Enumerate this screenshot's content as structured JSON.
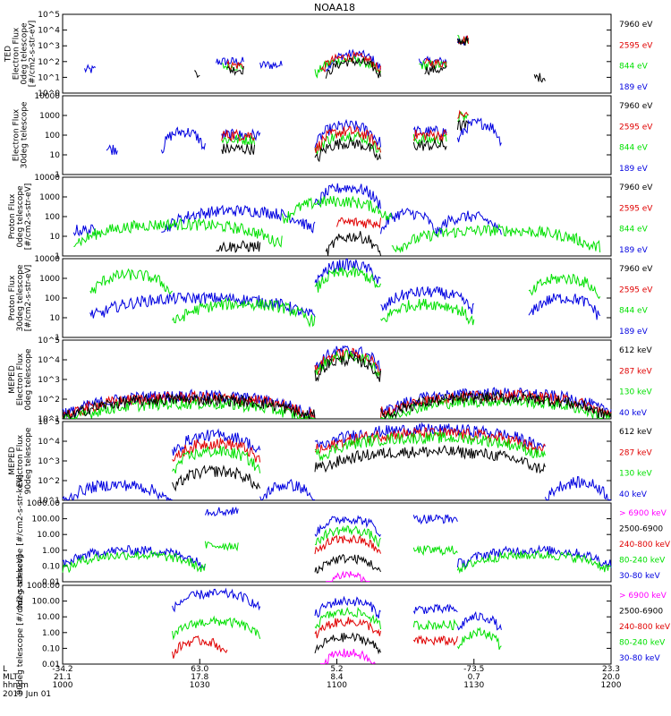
{
  "title": "NOAA18",
  "colors": {
    "black": "#000000",
    "red": "#e00000",
    "green": "#00e000",
    "blue": "#0000e0",
    "magenta": "#ff00ff"
  },
  "chart_data": [
    {
      "type": "line",
      "ylabel": [
        "TED",
        "Electron Flux",
        "0deg telescope",
        "[#/cm2-s-str-eV]"
      ],
      "yticks": [
        "10^0",
        "10^1",
        "10^2",
        "10^3",
        "10^4",
        "10^5"
      ],
      "log": true,
      "ylim": [
        1,
        100000
      ],
      "legend": [
        {
          "name": "7960 eV",
          "color": "black"
        },
        {
          "name": "2595 eV",
          "color": "red"
        },
        {
          "name": "844 eV",
          "color": "green"
        },
        {
          "name": "189 eV",
          "color": "blue"
        }
      ],
      "series": [
        {
          "color": "blue",
          "segments": [
            [
              0.04,
              0.06,
              30
            ],
            [
              0.28,
              0.33,
              100
            ],
            [
              0.36,
              0.4,
              60
            ],
            [
              0.48,
              0.58,
              300
            ],
            [
              0.65,
              0.7,
              100
            ],
            [
              0.72,
              0.74,
              2000
            ]
          ]
        },
        {
          "color": "green",
          "segments": [
            [
              0.29,
              0.33,
              50
            ],
            [
              0.46,
              0.58,
              120
            ],
            [
              0.65,
              0.7,
              60
            ],
            [
              0.72,
              0.74,
              3000
            ]
          ]
        },
        {
          "color": "red",
          "segments": [
            [
              0.3,
              0.33,
              60
            ],
            [
              0.47,
              0.58,
              200
            ],
            [
              0.66,
              0.7,
              80
            ],
            [
              0.72,
              0.74,
              2500
            ]
          ]
        },
        {
          "color": "black",
          "segments": [
            [
              0.24,
              0.25,
              20
            ],
            [
              0.3,
              0.33,
              30
            ],
            [
              0.48,
              0.58,
              100
            ],
            [
              0.66,
              0.7,
              30
            ],
            [
              0.72,
              0.74,
              2000
            ],
            [
              0.86,
              0.88,
              10
            ]
          ]
        }
      ]
    },
    {
      "type": "line",
      "ylabel": [
        "Electron Flux",
        "30deg telescope"
      ],
      "yticks": [
        "1",
        "10",
        "100",
        "1000",
        "10000"
      ],
      "log": true,
      "ylim": [
        1,
        10000
      ],
      "legend": [
        {
          "name": "7960 eV",
          "color": "black"
        },
        {
          "name": "2595 eV",
          "color": "red"
        },
        {
          "name": "844 eV",
          "color": "green"
        },
        {
          "name": "189 eV",
          "color": "blue"
        }
      ],
      "series": [
        {
          "color": "blue",
          "segments": [
            [
              0.08,
              0.1,
              20
            ],
            [
              0.18,
              0.26,
              150
            ],
            [
              0.29,
              0.36,
              100
            ],
            [
              0.46,
              0.58,
              300
            ],
            [
              0.64,
              0.7,
              150
            ],
            [
              0.72,
              0.8,
              400
            ]
          ]
        },
        {
          "color": "green",
          "segments": [
            [
              0.29,
              0.35,
              60
            ],
            [
              0.46,
              0.58,
              100
            ],
            [
              0.64,
              0.7,
              60
            ],
            [
              0.72,
              0.74,
              800
            ]
          ]
        },
        {
          "color": "red",
          "segments": [
            [
              0.29,
              0.35,
              100
            ],
            [
              0.46,
              0.58,
              150
            ],
            [
              0.64,
              0.7,
              100
            ],
            [
              0.72,
              0.74,
              1000
            ]
          ]
        },
        {
          "color": "black",
          "segments": [
            [
              0.29,
              0.35,
              20
            ],
            [
              0.46,
              0.58,
              40
            ],
            [
              0.64,
              0.7,
              30
            ],
            [
              0.72,
              0.74,
              300
            ]
          ]
        }
      ]
    },
    {
      "type": "line",
      "ylabel": [
        "Proton Flux",
        "0deg telescope",
        "[#/cm2-s-str-eV]"
      ],
      "yticks": [
        "1",
        "10",
        "100",
        "1000",
        "10000"
      ],
      "log": true,
      "ylim": [
        1,
        10000
      ],
      "legend": [
        {
          "name": "7960 eV",
          "color": "black"
        },
        {
          "name": "2595 eV",
          "color": "red"
        },
        {
          "name": "844 eV",
          "color": "green"
        },
        {
          "name": "189 eV",
          "color": "blue"
        }
      ],
      "series": [
        {
          "color": "blue",
          "segments": [
            [
              0.02,
              0.06,
              20
            ],
            [
              0.18,
              0.46,
              200
            ],
            [
              0.46,
              0.58,
              3000
            ],
            [
              0.58,
              0.68,
              150
            ],
            [
              0.68,
              0.8,
              100
            ]
          ]
        },
        {
          "color": "green",
          "segments": [
            [
              0.02,
              0.4,
              40
            ],
            [
              0.4,
              0.6,
              600
            ],
            [
              0.6,
              0.98,
              20
            ]
          ]
        },
        {
          "color": "red",
          "segments": [
            [
              0.5,
              0.58,
              50
            ]
          ]
        },
        {
          "color": "black",
          "segments": [
            [
              0.28,
              0.36,
              3
            ],
            [
              0.48,
              0.58,
              10
            ]
          ]
        }
      ]
    },
    {
      "type": "line",
      "ylabel": [
        "Proton Flux",
        "30deg telescope",
        "[#/cm2-s-str-eV]"
      ],
      "yticks": [
        "1",
        "10",
        "100",
        "1000",
        "10000"
      ],
      "log": true,
      "ylim": [
        1,
        10000
      ],
      "legend": [
        {
          "name": "7960 eV",
          "color": "black"
        },
        {
          "name": "2595 eV",
          "color": "red"
        },
        {
          "name": "844 eV",
          "color": "green"
        },
        {
          "name": "189 eV",
          "color": "blue"
        }
      ],
      "series": [
        {
          "color": "blue",
          "segments": [
            [
              0.05,
              0.46,
              100
            ],
            [
              0.46,
              0.58,
              5000
            ],
            [
              0.58,
              0.75,
              200
            ],
            [
              0.85,
              0.98,
              100
            ]
          ]
        },
        {
          "color": "green",
          "segments": [
            [
              0.05,
              0.2,
              1500
            ],
            [
              0.2,
              0.46,
              50
            ],
            [
              0.46,
              0.58,
              2000
            ],
            [
              0.58,
              0.75,
              50
            ],
            [
              0.85,
              0.98,
              1000
            ]
          ]
        }
      ]
    },
    {
      "type": "line",
      "ylabel": [
        "MEPED",
        "Electron Flux",
        "0deg telescope"
      ],
      "yticks": [
        "10^1",
        "10^2",
        "10^3",
        "10^4",
        "10^5"
      ],
      "log": true,
      "ylim": [
        10,
        100000
      ],
      "legend": [
        {
          "name": "612 keV",
          "color": "black"
        },
        {
          "name": "287 keV",
          "color": "red"
        },
        {
          "name": "130 keV",
          "color": "green"
        },
        {
          "name": "40 keV",
          "color": "blue"
        }
      ],
      "series": [
        {
          "color": "blue",
          "segments": [
            [
              0.0,
              0.46,
              150
            ],
            [
              0.46,
              0.58,
              30000
            ],
            [
              0.58,
              1.0,
              200
            ]
          ]
        },
        {
          "color": "red",
          "segments": [
            [
              0.0,
              0.46,
              120
            ],
            [
              0.46,
              0.58,
              20000
            ],
            [
              0.58,
              1.0,
              150
            ]
          ]
        },
        {
          "color": "green",
          "segments": [
            [
              0.0,
              0.46,
              60
            ],
            [
              0.46,
              0.58,
              15000
            ],
            [
              0.58,
              1.0,
              80
            ]
          ]
        },
        {
          "color": "black",
          "segments": [
            [
              0.0,
              0.46,
              100
            ],
            [
              0.46,
              0.58,
              10000
            ],
            [
              0.58,
              1.0,
              120
            ]
          ]
        }
      ]
    },
    {
      "type": "line",
      "ylabel": [
        "MEPED",
        "Electron Flux",
        "90deg telescope"
      ],
      "yticks": [
        "10^1",
        "10^2",
        "10^3",
        "10^4",
        "10^5"
      ],
      "log": true,
      "ylim": [
        10,
        100000
      ],
      "legend": [
        {
          "name": "612 keV",
          "color": "black"
        },
        {
          "name": "287 keV",
          "color": "red"
        },
        {
          "name": "130 keV",
          "color": "green"
        },
        {
          "name": "40 keV",
          "color": "blue"
        }
      ],
      "series": [
        {
          "color": "blue",
          "segments": [
            [
              0.0,
              0.2,
              60
            ],
            [
              0.2,
              0.36,
              20000
            ],
            [
              0.36,
              0.46,
              60
            ],
            [
              0.46,
              0.88,
              40000
            ],
            [
              0.88,
              1.0,
              80
            ]
          ]
        },
        {
          "color": "red",
          "segments": [
            [
              0.2,
              0.36,
              8000
            ],
            [
              0.46,
              0.88,
              25000
            ]
          ]
        },
        {
          "color": "green",
          "segments": [
            [
              0.2,
              0.36,
              3000
            ],
            [
              0.46,
              0.88,
              15000
            ]
          ]
        },
        {
          "color": "black",
          "segments": [
            [
              0.2,
              0.36,
              300
            ],
            [
              0.46,
              0.88,
              3000
            ]
          ]
        }
      ]
    },
    {
      "type": "line",
      "ylabel": [
        "0deg telescope [#/cm2-s-str-keV]"
      ],
      "yticks": [
        "0.01",
        "0.10",
        "1.00",
        "10.00",
        "100.00",
        "1000.00"
      ],
      "log": true,
      "ylim": [
        0.01,
        1000
      ],
      "legend": [
        {
          "name": "> 6900 keV",
          "color": "magenta"
        },
        {
          "name": "2500-6900",
          "color": "black"
        },
        {
          "name": "240-800 keV",
          "color": "red"
        },
        {
          "name": "80-240 keV",
          "color": "green"
        },
        {
          "name": "30-80 keV",
          "color": "blue"
        }
      ],
      "series": [
        {
          "color": "blue",
          "segments": [
            [
              0.0,
              0.26,
              1
            ],
            [
              0.26,
              0.32,
              300
            ],
            [
              0.46,
              0.58,
              100
            ],
            [
              0.64,
              0.72,
              100
            ],
            [
              0.72,
              1.0,
              1
            ]
          ]
        },
        {
          "color": "green",
          "segments": [
            [
              0.0,
              0.26,
              0.5
            ],
            [
              0.26,
              0.32,
              2
            ],
            [
              0.46,
              0.58,
              20
            ],
            [
              0.64,
              0.72,
              1
            ],
            [
              0.72,
              1.0,
              0.5
            ]
          ]
        },
        {
          "color": "red",
          "segments": [
            [
              0.46,
              0.58,
              5
            ]
          ]
        },
        {
          "color": "black",
          "segments": [
            [
              0.46,
              0.58,
              0.3
            ]
          ]
        },
        {
          "color": "magenta",
          "segments": [
            [
              0.48,
              0.56,
              0.03
            ]
          ]
        }
      ]
    },
    {
      "type": "line",
      "ylabel": [
        "90deg telescope [#/cm2-s-str-keV]"
      ],
      "yticks": [
        "0.01",
        "0.10",
        "1.00",
        "10.00",
        "100.00",
        "1000.00"
      ],
      "log": true,
      "ylim": [
        0.01,
        1000
      ],
      "legend": [
        {
          "name": "> 6900 keV",
          "color": "magenta"
        },
        {
          "name": "2500-6900",
          "color": "black"
        },
        {
          "name": "240-800 keV",
          "color": "red"
        },
        {
          "name": "80-240 keV",
          "color": "green"
        },
        {
          "name": "30-80 keV",
          "color": "blue"
        }
      ],
      "series": [
        {
          "color": "blue",
          "segments": [
            [
              0.2,
              0.36,
              300
            ],
            [
              0.46,
              0.58,
              100
            ],
            [
              0.64,
              0.72,
              30
            ],
            [
              0.72,
              0.8,
              10
            ]
          ]
        },
        {
          "color": "green",
          "segments": [
            [
              0.2,
              0.36,
              5
            ],
            [
              0.46,
              0.58,
              20
            ],
            [
              0.64,
              0.72,
              3
            ],
            [
              0.72,
              0.8,
              1
            ]
          ]
        },
        {
          "color": "red",
          "segments": [
            [
              0.2,
              0.3,
              0.3
            ],
            [
              0.46,
              0.58,
              5
            ],
            [
              0.64,
              0.72,
              0.3
            ]
          ]
        },
        {
          "color": "black",
          "segments": [
            [
              0.46,
              0.58,
              0.5
            ]
          ]
        },
        {
          "color": "magenta",
          "segments": [
            [
              0.47,
              0.57,
              0.05
            ]
          ]
        }
      ]
    }
  ],
  "xaxis": {
    "row_labels": [
      "L",
      "MLT",
      "hhmm",
      "2019 Jun 01"
    ],
    "ticks": [
      {
        "L": "-34.2",
        "MLT": "21.1",
        "hhmm": "1000"
      },
      {
        "L": "63.0",
        "MLT": "17.8",
        "hhmm": "1030"
      },
      {
        "L": "5.2",
        "MLT": "8.4",
        "hhmm": "1100"
      },
      {
        "L": "-73.5",
        "MLT": "0.7",
        "hhmm": "1130"
      },
      {
        "L": "23.3",
        "MLT": "20.0",
        "hhmm": "1200"
      }
    ]
  }
}
